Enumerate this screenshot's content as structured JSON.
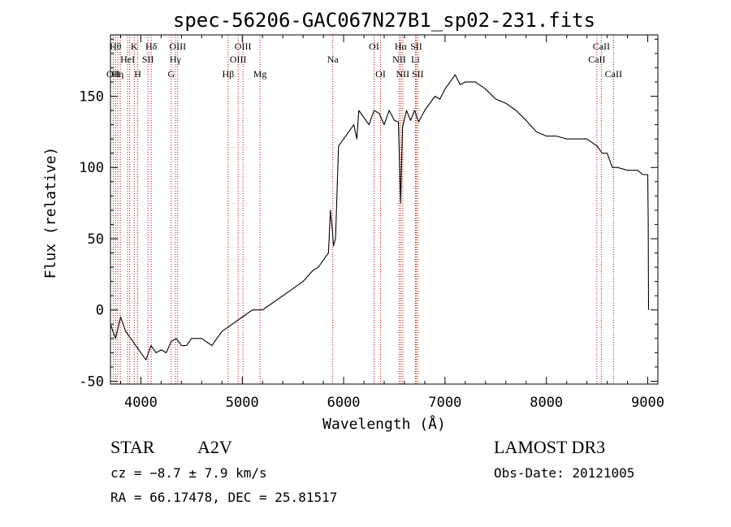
{
  "chart_data": {
    "type": "line",
    "title": "spec-56206-GAC067N27B1_sp02-231.fits",
    "xlabel": "Wavelength (Å)",
    "ylabel": "Flux (relative)",
    "xlim": [
      3700,
      9100
    ],
    "ylim": [
      -52,
      193
    ],
    "xticks": [
      4000,
      5000,
      6000,
      7000,
      8000,
      9000
    ],
    "yticks": [
      -50,
      0,
      50,
      100,
      150
    ],
    "grid": false,
    "line_color": "#000000",
    "marker_color": "#cc0000",
    "series": [
      {
        "x": [
          3700,
          3750,
          3800,
          3850,
          3900,
          3950,
          4000,
          4050,
          4100,
          4150,
          4200,
          4250,
          4300,
          4350,
          4400,
          4450,
          4500,
          4600,
          4700,
          4800,
          4900,
          5000,
          5100,
          5200,
          5300,
          5400,
          5500,
          5600,
          5700,
          5750,
          5800,
          5850,
          5870,
          5890,
          5900,
          5920,
          5950,
          6000,
          6050,
          6100,
          6130,
          6150,
          6200,
          6250,
          6300,
          6350,
          6400,
          6450,
          6500,
          6540,
          6563,
          6580,
          6620,
          6660,
          6700,
          6740,
          6800,
          6850,
          6900,
          6950,
          7000,
          7050,
          7100,
          7150,
          7200,
          7300,
          7400,
          7500,
          7600,
          7700,
          7800,
          7900,
          8000,
          8100,
          8200,
          8300,
          8400,
          8500,
          8550,
          8600,
          8650,
          8700,
          8800,
          8900,
          8950,
          9000,
          9005,
          9008
        ],
        "y": [
          -10,
          -20,
          -5,
          -15,
          -20,
          -25,
          -30,
          -35,
          -25,
          -30,
          -28,
          -30,
          -22,
          -20,
          -25,
          -25,
          -20,
          -20,
          -25,
          -15,
          -10,
          -5,
          0,
          0,
          5,
          10,
          15,
          20,
          28,
          30,
          35,
          40,
          70,
          55,
          45,
          50,
          115,
          120,
          125,
          130,
          120,
          140,
          135,
          130,
          140,
          138,
          130,
          140,
          133,
          132,
          75,
          128,
          140,
          133,
          140,
          132,
          140,
          145,
          150,
          148,
          155,
          160,
          165,
          158,
          160,
          160,
          155,
          148,
          145,
          140,
          133,
          125,
          122,
          122,
          120,
          120,
          120,
          115,
          110,
          110,
          100,
          100,
          98,
          98,
          95,
          95,
          60,
          0
        ]
      }
    ],
    "lines": [
      {
        "x": 3727,
        "labels": [
          "OII"
        ],
        "row": 3
      },
      {
        "x": 3750,
        "labels": [
          "Hθ"
        ],
        "row": 1
      },
      {
        "x": 3771,
        "labels": [
          "Hη"
        ],
        "row": 3
      },
      {
        "x": 3797,
        "labels": [],
        "row": 0
      },
      {
        "x": 3869,
        "labels": [
          "HeI"
        ],
        "row": 2
      },
      {
        "x": 3889,
        "labels": [],
        "row": 0
      },
      {
        "x": 3934,
        "labels": [
          "K"
        ],
        "row": 1
      },
      {
        "x": 3969,
        "labels": [
          "H"
        ],
        "row": 3
      },
      {
        "x": 4070,
        "labels": [
          "SII"
        ],
        "row": 2
      },
      {
        "x": 4102,
        "labels": [
          "Hδ"
        ],
        "row": 1
      },
      {
        "x": 4300,
        "labels": [
          "G"
        ],
        "row": 3
      },
      {
        "x": 4340,
        "labels": [
          "Hγ"
        ],
        "row": 2
      },
      {
        "x": 4363,
        "labels": [
          "OIII"
        ],
        "row": 1
      },
      {
        "x": 4861,
        "labels": [
          "Hβ"
        ],
        "row": 3
      },
      {
        "x": 4959,
        "labels": [
          "OIII"
        ],
        "row": 2
      },
      {
        "x": 5007,
        "labels": [
          "OIII"
        ],
        "row": 1
      },
      {
        "x": 5175,
        "labels": [
          "Mg"
        ],
        "row": 3
      },
      {
        "x": 5893,
        "labels": [
          "Na"
        ],
        "row": 2
      },
      {
        "x": 6300,
        "labels": [
          "OI"
        ],
        "row": 1
      },
      {
        "x": 6364,
        "labels": [
          "OI"
        ],
        "row": 3
      },
      {
        "x": 6548,
        "labels": [
          "NII"
        ],
        "row": 2
      },
      {
        "x": 6563,
        "labels": [
          "Hα"
        ],
        "row": 1
      },
      {
        "x": 6583,
        "labels": [
          "NII"
        ],
        "row": 3
      },
      {
        "x": 6708,
        "labels": [
          "Li"
        ],
        "row": 2
      },
      {
        "x": 6716,
        "labels": [
          "SII"
        ],
        "row": 1
      },
      {
        "x": 6731,
        "labels": [
          "SII"
        ],
        "row": 3
      },
      {
        "x": 8498,
        "labels": [
          "CaII"
        ],
        "row": 2
      },
      {
        "x": 8542,
        "labels": [
          "CaII"
        ],
        "row": 1
      },
      {
        "x": 8662,
        "labels": [
          "CaII"
        ],
        "row": 3
      }
    ]
  },
  "info": {
    "object_class": "STAR",
    "subclass": "A2V",
    "survey": "LAMOST DR3",
    "cz": "cz = −8.7 ± 7.9 km/s",
    "obs_date": "Obs-Date: 20121005",
    "coords": "RA =  66.17478, DEC =  25.81517"
  }
}
